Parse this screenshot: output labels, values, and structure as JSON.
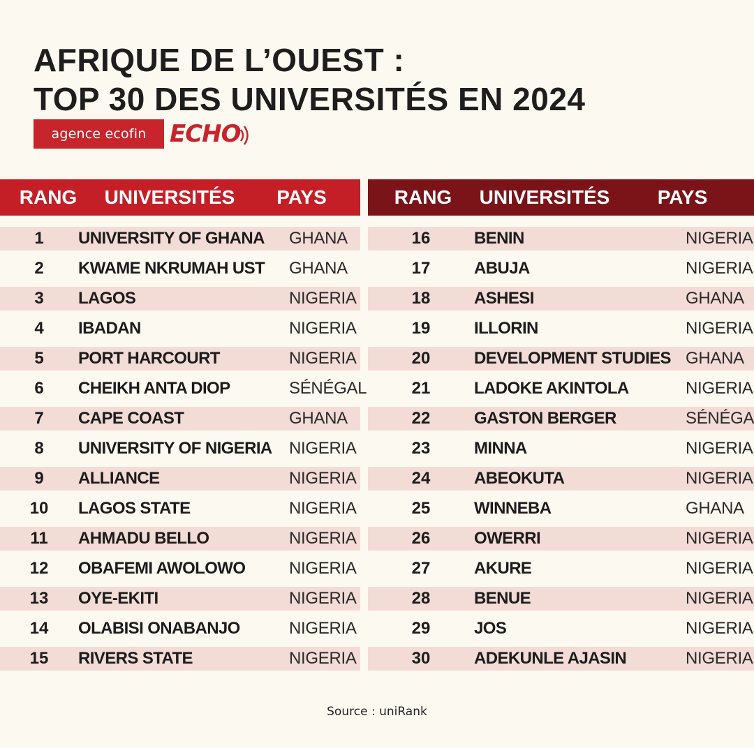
{
  "header": {
    "title_line1": "AFRIQUE DE L’OUEST :",
    "title_line2": "TOP 30 DES UNIVERSITÉS EN 2024"
  },
  "brand": {
    "agency": "agence ecofin",
    "echo": "ECHO",
    "color": "#c8242b"
  },
  "table_headers": {
    "rank": "RANG",
    "university": "UNIVERSITÉS",
    "country": "PAYS"
  },
  "colors": {
    "left_header": "#c41f27",
    "right_header": "#7a1418",
    "row_shade": "#f3dcd6"
  },
  "rankings_left": [
    {
      "rank": "1",
      "university": "UNIVERSITY OF GHANA",
      "country": "GHANA"
    },
    {
      "rank": "2",
      "university": "KWAME NKRUMAH UST",
      "country": "GHANA"
    },
    {
      "rank": "3",
      "university": "LAGOS",
      "country": "NIGERIA"
    },
    {
      "rank": "4",
      "university": "IBADAN",
      "country": "NIGERIA"
    },
    {
      "rank": "5",
      "university": "PORT HARCOURT",
      "country": "NIGERIA"
    },
    {
      "rank": "6",
      "university": "CHEIKH ANTA DIOP",
      "country": "SÉNÉGAL"
    },
    {
      "rank": "7",
      "university": "CAPE COAST",
      "country": "GHANA"
    },
    {
      "rank": "8",
      "university": "UNIVERSITY OF NIGERIA",
      "country": "NIGERIA"
    },
    {
      "rank": "9",
      "university": "ALLIANCE",
      "country": "NIGERIA"
    },
    {
      "rank": "10",
      "university": "LAGOS STATE",
      "country": "NIGERIA"
    },
    {
      "rank": "11",
      "university": "AHMADU BELLO",
      "country": "NIGERIA"
    },
    {
      "rank": "12",
      "university": "OBAFEMI AWOLOWO",
      "country": "NIGERIA"
    },
    {
      "rank": "13",
      "university": "OYE-EKITI",
      "country": "NIGERIA"
    },
    {
      "rank": "14",
      "university": "OLABISI ONABANJO",
      "country": "NIGERIA"
    },
    {
      "rank": "15",
      "university": "RIVERS STATE",
      "country": "NIGERIA"
    }
  ],
  "rankings_right": [
    {
      "rank": "16",
      "university": "BENIN",
      "country": "NIGERIA"
    },
    {
      "rank": "17",
      "university": "ABUJA",
      "country": "NIGERIA"
    },
    {
      "rank": "18",
      "university": "ASHESI",
      "country": "GHANA"
    },
    {
      "rank": "19",
      "university": "ILLORIN",
      "country": "NIGERIA"
    },
    {
      "rank": "20",
      "university": "DEVELOPMENT STUDIES",
      "country": "GHANA"
    },
    {
      "rank": "21",
      "university": "LADOKE AKINTOLA",
      "country": "NIGERIA"
    },
    {
      "rank": "22",
      "university": "GASTON BERGER",
      "country": "SÉNÉGAL"
    },
    {
      "rank": "23",
      "university": "MINNA",
      "country": "NIGERIA"
    },
    {
      "rank": "24",
      "university": "ABEOKUTA",
      "country": "NIGERIA"
    },
    {
      "rank": "25",
      "university": "WINNEBA",
      "country": "GHANA"
    },
    {
      "rank": "26",
      "university": "OWERRI",
      "country": "NIGERIA"
    },
    {
      "rank": "27",
      "university": "AKURE",
      "country": "NIGERIA"
    },
    {
      "rank": "28",
      "university": "BENUE",
      "country": "NIGERIA"
    },
    {
      "rank": "29",
      "university": "JOS",
      "country": "NIGERIA"
    },
    {
      "rank": "30",
      "university": "ADEKUNLE AJASIN",
      "country": "NIGERIA"
    }
  ],
  "footer": {
    "source": "Source : uniRank"
  }
}
